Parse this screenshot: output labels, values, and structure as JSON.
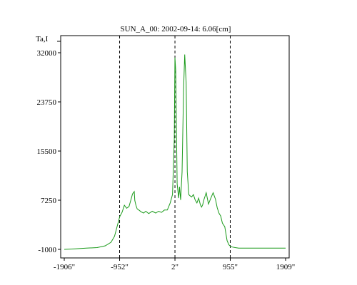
{
  "chart_data": {
    "type": "line",
    "title": "SUN_A_00: 2002-09-14: 6.06[cm]",
    "ylabel": "Ta,I",
    "xlabel": "",
    "xlim": [
      -1906,
      1909
    ],
    "ylim": [
      -1000,
      32000
    ],
    "x_ticks": [
      {
        "value": -1906,
        "label": "-1906\""
      },
      {
        "value": -952,
        "label": "-952\""
      },
      {
        "value": 2,
        "label": "2\""
      },
      {
        "value": 955,
        "label": "955\""
      },
      {
        "value": 1909,
        "label": "1909\""
      }
    ],
    "y_ticks": [
      {
        "value": 32000,
        "label": "32000"
      },
      {
        "value": 23750,
        "label": "23750"
      },
      {
        "value": 15500,
        "label": "15500"
      },
      {
        "value": 7250,
        "label": "7250"
      },
      {
        "value": -1000,
        "label": "-1000"
      }
    ],
    "vlines": [
      -952,
      2,
      955
    ],
    "line_color": "#1a9a1a",
    "grid": false,
    "series": [
      {
        "x": [
          -1906,
          -1720,
          -1530,
          -1340,
          -1200,
          -1100,
          -1040,
          -990,
          -950,
          -910,
          -870,
          -830,
          -790,
          -760,
          -730,
          -700,
          -690,
          -670,
          -650,
          -620,
          -580,
          -540,
          -500,
          -450,
          -390,
          -330,
          -280,
          -230,
          -180,
          -130,
          -80,
          -40,
          -10,
          2,
          15,
          40,
          65,
          80,
          100,
          125,
          150,
          170,
          195,
          215,
          240,
          260,
          290,
          320,
          350,
          380,
          410,
          440,
          460,
          480,
          500,
          540,
          580,
          620,
          660,
          700,
          730,
          760,
          790,
          820,
          860,
          900,
          930,
          960,
          990,
          1040,
          1100,
          1200,
          1330,
          1450,
          1550,
          1640,
          1750,
          1850,
          1909
        ],
        "y": [
          -1000,
          -900,
          -800,
          -700,
          -400,
          200,
          1200,
          3000,
          4500,
          5200,
          6400,
          5900,
          6200,
          7200,
          8300,
          8700,
          7200,
          6400,
          5800,
          5600,
          5300,
          5100,
          5400,
          5000,
          5400,
          5100,
          5400,
          5200,
          5600,
          5600,
          6800,
          8200,
          17500,
          31200,
          29000,
          10000,
          7600,
          9500,
          7300,
          12000,
          25800,
          31700,
          27000,
          12000,
          8200,
          8000,
          7800,
          8200,
          7300,
          6800,
          7600,
          6500,
          6100,
          6500,
          7300,
          8500,
          6600,
          7600,
          8500,
          7400,
          6000,
          5100,
          4600,
          3400,
          2800,
          500,
          -200,
          -500,
          -600,
          -700,
          -800,
          -800,
          -800,
          -800,
          -800,
          -800,
          -800,
          -800,
          -800
        ]
      }
    ]
  }
}
